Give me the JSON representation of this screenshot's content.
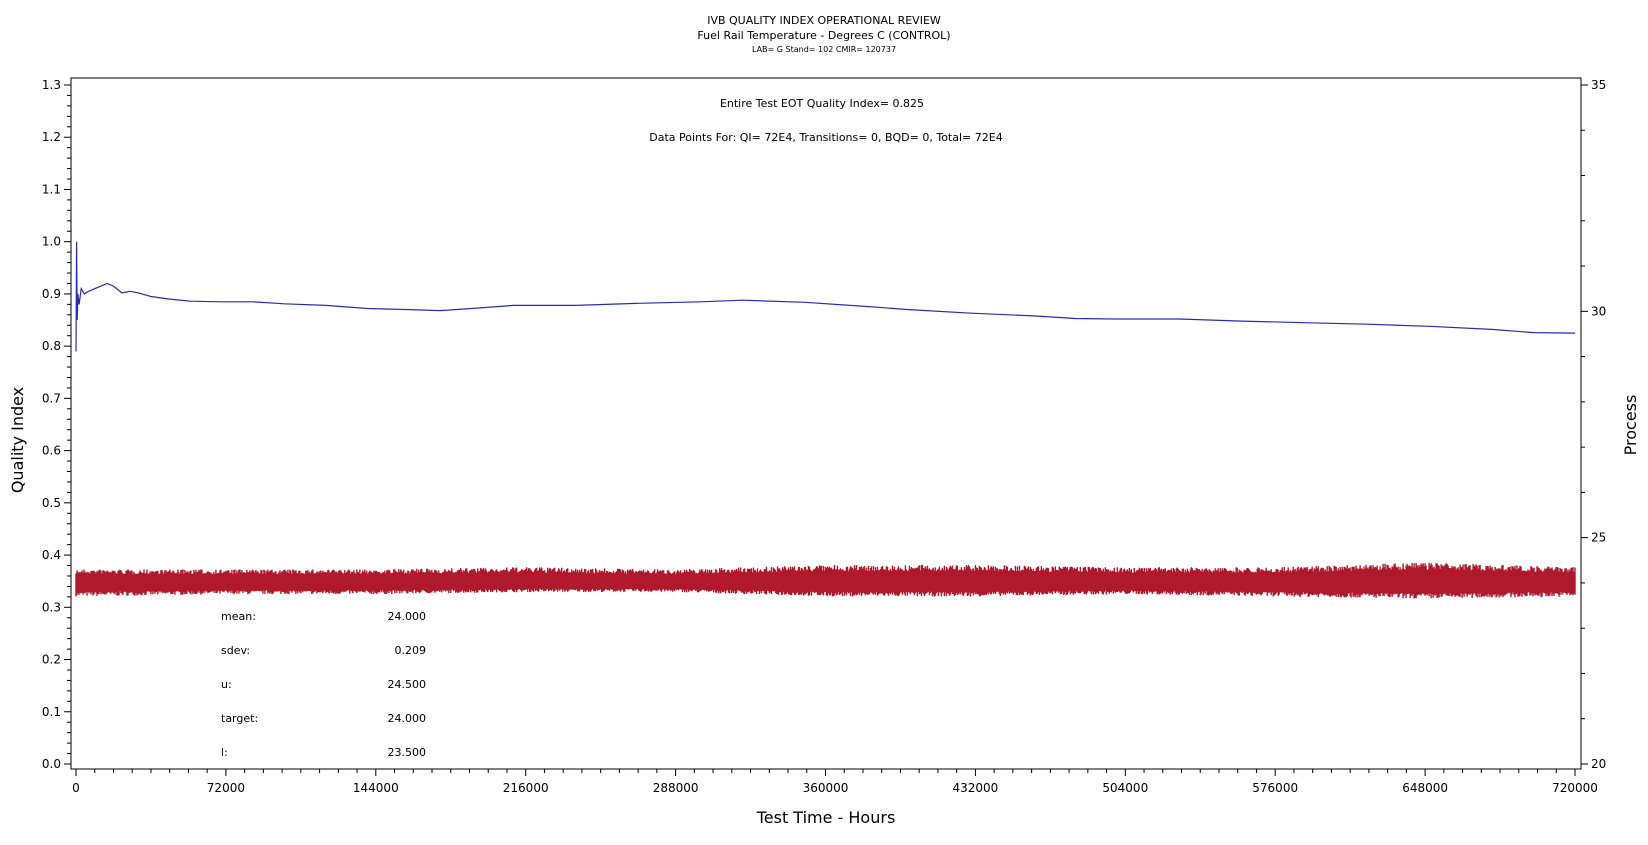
{
  "header": {
    "title": "IVB QUALITY INDEX OPERATIONAL REVIEW",
    "subtitle": "Fuel Rail Temperature - Degrees C (CONTROL)",
    "info": "LAB= G Stand= 102 CMIR= 120737"
  },
  "annotations": {
    "quality_index": "Entire Test EOT Quality Index=   0.825",
    "data_points": "Data Points For: QI=  72E4, Transitions=     0, BQD=     0, Total=  72E4"
  },
  "stats": [
    {
      "label": "mean:",
      "value": "24.000"
    },
    {
      "label": "sdev:",
      "value": "0.209"
    },
    {
      "label": "u:",
      "value": "24.500"
    },
    {
      "label": "target:",
      "value": "24.000"
    },
    {
      "label": "l:",
      "value": "23.500"
    }
  ],
  "colors": {
    "quality_line": "#2a2ab8",
    "process_band": "#b0182c",
    "axis": "#000000"
  },
  "chart_data": {
    "type": "line",
    "title": "IVB QUALITY INDEX OPERATIONAL REVIEW",
    "subtitle": "Fuel Rail Temperature - Degrees C (CONTROL)",
    "xlabel": "Test Time - Hours",
    "ylabel": "Quality Index",
    "y2label": "Process",
    "xlim": [
      0,
      720000
    ],
    "ylim": [
      0.0,
      1.3
    ],
    "y2lim": [
      20,
      35
    ],
    "x_ticks": [
      0,
      72000,
      144000,
      216000,
      288000,
      360000,
      432000,
      504000,
      576000,
      648000,
      720000
    ],
    "y_ticks": [
      "0.0",
      "0.1",
      "0.2",
      "0.3",
      "0.4",
      "0.5",
      "0.6",
      "0.7",
      "0.8",
      "0.9",
      "1.0",
      "1.1",
      "1.2",
      "1.3"
    ],
    "y2_ticks": [
      20,
      25,
      30,
      35
    ],
    "grid": false,
    "series": [
      {
        "axis": "left",
        "x": [
          0,
          300,
          600,
          900,
          1500,
          2500,
          4000,
          6000,
          9000,
          12000,
          15000,
          18000,
          22000,
          26000,
          30000,
          36000,
          45000,
          55000,
          70000,
          85000,
          100000,
          120000,
          140000,
          160000,
          175000,
          190000,
          210000,
          240000,
          270000,
          300000,
          320000,
          350000,
          380000,
          400000,
          430000,
          460000,
          480000,
          500000,
          530000,
          560000,
          590000,
          620000,
          650000,
          680000,
          700000,
          720000
        ],
        "values": [
          0.79,
          1.0,
          0.85,
          0.9,
          0.88,
          0.91,
          0.9,
          0.905,
          0.91,
          0.915,
          0.92,
          0.915,
          0.902,
          0.905,
          0.902,
          0.895,
          0.89,
          0.886,
          0.885,
          0.885,
          0.881,
          0.878,
          0.872,
          0.87,
          0.868,
          0.872,
          0.878,
          0.878,
          0.882,
          0.885,
          0.888,
          0.884,
          0.876,
          0.87,
          0.863,
          0.858,
          0.853,
          0.852,
          0.852,
          0.848,
          0.845,
          0.842,
          0.838,
          0.832,
          0.826,
          0.825
        ]
      },
      {
        "axis": "right",
        "x": [
          0,
          72000,
          144000,
          216000,
          288000,
          360000,
          432000,
          504000,
          576000,
          648000,
          720000
        ],
        "values": [
          24.0,
          24.0,
          24.0,
          24.0,
          24.0,
          24.0,
          24.0,
          24.0,
          24.0,
          24.0,
          24.0
        ],
        "band_low": [
          23.7,
          23.75,
          23.75,
          23.8,
          23.8,
          23.7,
          23.7,
          23.75,
          23.7,
          23.65,
          23.7
        ],
        "band_high": [
          24.3,
          24.3,
          24.3,
          24.35,
          24.3,
          24.4,
          24.4,
          24.35,
          24.35,
          24.45,
          24.35
        ]
      }
    ]
  }
}
